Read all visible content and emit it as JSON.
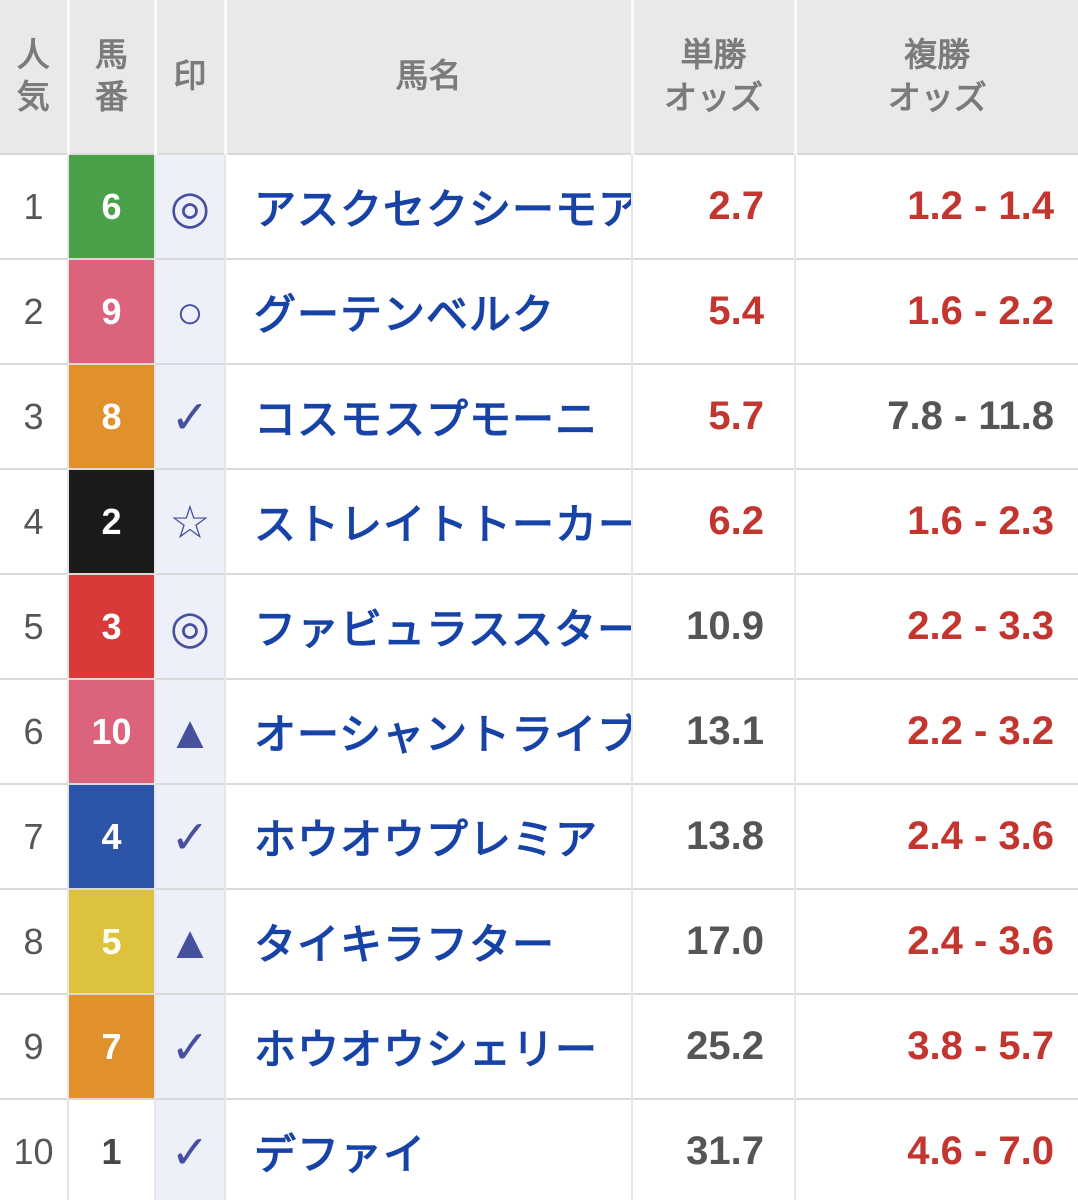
{
  "header": {
    "rank": "人気",
    "number": "馬番",
    "mark": "印",
    "name": "馬名",
    "win_line1": "単勝",
    "win_line2": "オッズ",
    "place_line1": "複勝",
    "place_line2": "オッズ"
  },
  "colors": {
    "header_bg": "#e9e9e9",
    "header_text": "#7b7b7b",
    "row_border": "#d9d9d9",
    "mark_column_bg": "#edf0f9",
    "mark_symbol": "#47509f",
    "horse_name_link": "#1843a6",
    "odds_hot": "#c2362f",
    "odds_normal": "#555555"
  },
  "rows": [
    {
      "rank": "1",
      "number": "6",
      "number_bg": "#4aa14a",
      "number_fg": "#ffffff",
      "mark": "◎",
      "name": "アスクセクシーモア",
      "win": "2.7",
      "win_color": "#c2362f",
      "place": "1.2 - 1.4",
      "place_color": "#c2362f"
    },
    {
      "rank": "2",
      "number": "9",
      "number_bg": "#db637b",
      "number_fg": "#ffffff",
      "mark": "○",
      "name": "グーテンベルク",
      "win": "5.4",
      "win_color": "#c2362f",
      "place": "1.6 - 2.2",
      "place_color": "#c2362f"
    },
    {
      "rank": "3",
      "number": "8",
      "number_bg": "#e0912c",
      "number_fg": "#ffffff",
      "mark": "✓",
      "name": "コスモスプモーニ",
      "win": "5.7",
      "win_color": "#c2362f",
      "place": "7.8 - 11.8",
      "place_color": "#555555"
    },
    {
      "rank": "4",
      "number": "2",
      "number_bg": "#1b1b1b",
      "number_fg": "#ffffff",
      "mark": "☆",
      "name": "ストレイトトーカー",
      "win": "6.2",
      "win_color": "#c2362f",
      "place": "1.6 - 2.3",
      "place_color": "#c2362f"
    },
    {
      "rank": "5",
      "number": "3",
      "number_bg": "#d83a3a",
      "number_fg": "#ffffff",
      "mark": "◎",
      "name": "ファビュラススター",
      "win": "10.9",
      "win_color": "#555555",
      "place": "2.2 - 3.3",
      "place_color": "#c2362f"
    },
    {
      "rank": "6",
      "number": "10",
      "number_bg": "#db637b",
      "number_fg": "#ffffff",
      "mark": "▲",
      "name": "オーシャントライブ",
      "win": "13.1",
      "win_color": "#555555",
      "place": "2.2 - 3.2",
      "place_color": "#c2362f"
    },
    {
      "rank": "7",
      "number": "4",
      "number_bg": "#2d55a7",
      "number_fg": "#ffffff",
      "mark": "✓",
      "name": "ホウオウプレミア",
      "win": "13.8",
      "win_color": "#555555",
      "place": "2.4 - 3.6",
      "place_color": "#c2362f"
    },
    {
      "rank": "8",
      "number": "5",
      "number_bg": "#dcc23d",
      "number_fg": "#fffdf0",
      "mark": "▲",
      "name": "タイキラフター",
      "win": "17.0",
      "win_color": "#555555",
      "place": "2.4 - 3.6",
      "place_color": "#c2362f"
    },
    {
      "rank": "9",
      "number": "7",
      "number_bg": "#e0912c",
      "number_fg": "#ffffff",
      "mark": "✓",
      "name": "ホウオウシェリー",
      "win": "25.2",
      "win_color": "#555555",
      "place": "3.8 - 5.7",
      "place_color": "#c2362f"
    },
    {
      "rank": "10",
      "number": "1",
      "number_bg": "#ffffff",
      "number_fg": "#474747",
      "mark": "✓",
      "name": "デファイ",
      "win": "31.7",
      "win_color": "#555555",
      "place": "4.6 - 7.0",
      "place_color": "#c2362f"
    }
  ]
}
